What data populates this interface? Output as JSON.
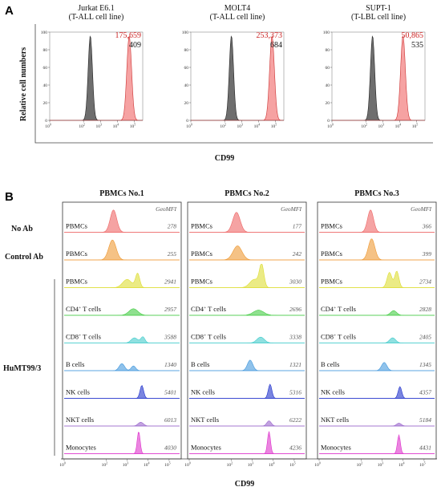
{
  "colors": {
    "isotype": "#333333",
    "cd99": "#ee5555",
    "mfi_red": "#cc2222",
    "series_colors": {
      "no_ab": "#ee6666",
      "control_ab": "#ee9933",
      "pbmcs": "#dddd33",
      "cd4": "#44cc44",
      "cd8": "#44cccc",
      "b_cells": "#4499dd",
      "nk_cells": "#2233cc",
      "nkt_cells": "#9966cc",
      "monocytes": "#dd33cc"
    }
  },
  "chart_data": [
    {
      "type": "area",
      "panel": "A",
      "ylabel": "Relative cell numbers",
      "xlabel": "CD99",
      "ylim": [
        0,
        100
      ],
      "yticks": [
        "0",
        "20",
        "40",
        "60",
        "80",
        "100"
      ],
      "xticks": [
        "0",
        "2",
        "3",
        "4",
        "5"
      ],
      "subplots": [
        {
          "title_line1": "Jurkat E6.1",
          "title_line2": "(T-ALL cell line)",
          "mfi_cd99": "175,659",
          "mfi_control": "409",
          "peak_control_log": 2.4,
          "peak_cd99_log": 4.7
        },
        {
          "title_line1": "MOLT4",
          "title_line2": "(T-ALL cell line)",
          "mfi_cd99": "253,373",
          "mfi_control": "684",
          "peak_control_log": 2.4,
          "peak_cd99_log": 4.8
        },
        {
          "title_line1": "SUPT-1",
          "title_line2": "(T-LBL cell line)",
          "mfi_cd99": "50,865",
          "mfi_control": "535",
          "peak_control_log": 2.4,
          "peak_cd99_log": 4.2
        }
      ]
    },
    {
      "type": "area",
      "panel": "B",
      "xlabel": "CD99",
      "xticks": [
        "0",
        "2",
        "3",
        "4",
        "5"
      ],
      "geomfi_header": "GeoMFI",
      "row_groups": {
        "no_ab": "No Ab",
        "control_ab": "Control Ab",
        "humt": "HuMT99/3"
      },
      "columns": [
        {
          "title": "PBMCs No.1",
          "rows": [
            {
              "label": "PBMCs",
              "value": "278"
            },
            {
              "label": "PBMCs",
              "value": "255"
            },
            {
              "label": "PBMCs",
              "value": "2941"
            },
            {
              "label": "CD4+ T cells",
              "value": "2957"
            },
            {
              "label": "CD8+ T cells",
              "value": "3588"
            },
            {
              "label": "B cells",
              "value": "1340"
            },
            {
              "label": "NK cells",
              "value": "5401"
            },
            {
              "label": "NKT cells",
              "value": "6013"
            },
            {
              "label": "Monocytes",
              "value": "4030"
            }
          ]
        },
        {
          "title": "PBMCs No.2",
          "rows": [
            {
              "label": "PBMCs",
              "value": "177"
            },
            {
              "label": "PBMCs",
              "value": "242"
            },
            {
              "label": "PBMCs",
              "value": "3030"
            },
            {
              "label": "CD4+ T cells",
              "value": "2696"
            },
            {
              "label": "CD8+ T cells",
              "value": "3338"
            },
            {
              "label": "B cells",
              "value": "1321"
            },
            {
              "label": "NK cells",
              "value": "5316"
            },
            {
              "label": "NKT cells",
              "value": "6222"
            },
            {
              "label": "Monocytes",
              "value": "4236"
            }
          ]
        },
        {
          "title": "PBMCs No.3",
          "rows": [
            {
              "label": "PBMCs",
              "value": "366"
            },
            {
              "label": "PBMCs",
              "value": "399"
            },
            {
              "label": "PBMCs",
              "value": "2734"
            },
            {
              "label": "CD4+ T cells",
              "value": "2828"
            },
            {
              "label": "CD8+ T cells",
              "value": "2405"
            },
            {
              "label": "B cells",
              "value": "1345"
            },
            {
              "label": "NK cells",
              "value": "4357"
            },
            {
              "label": "NKT cells",
              "value": "5184"
            },
            {
              "label": "Monocytes",
              "value": "4431"
            }
          ]
        }
      ]
    }
  ],
  "panel_letters": {
    "a": "A",
    "b": "B"
  }
}
